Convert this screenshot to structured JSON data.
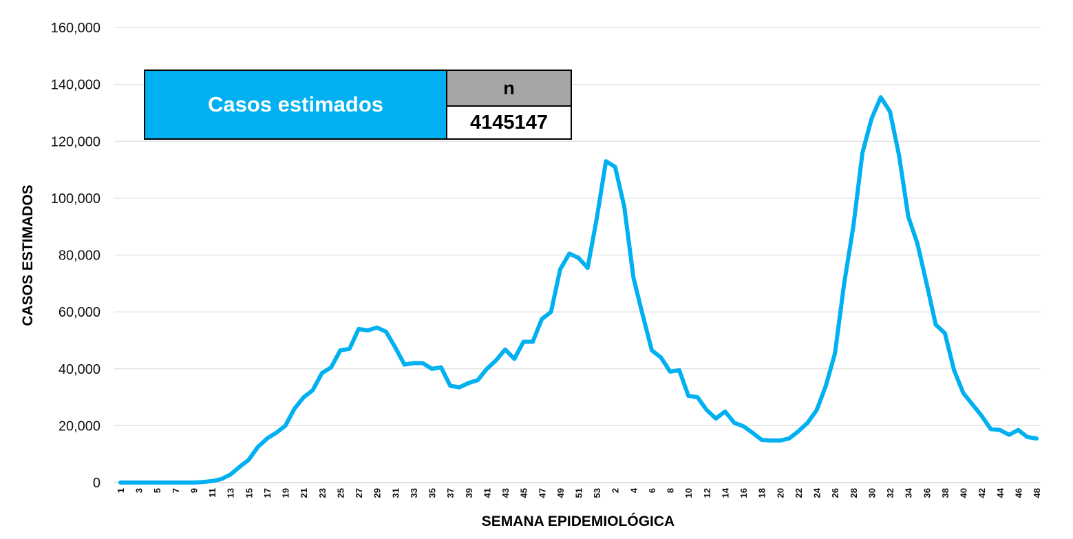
{
  "summary_table": {
    "label": "Casos estimados",
    "header": "n",
    "value": "4145147"
  },
  "colors": {
    "line": "#00b0f0",
    "label_fill": "#00b0f0",
    "header_fill": "#a6a6a6",
    "grid": "#d9d9d9"
  },
  "chart_data": {
    "type": "line",
    "title": "",
    "xlabel": "SEMANA EPIDEMIOLÓGICA",
    "ylabel": "CASOS ESTIMADOS",
    "ylim": [
      0,
      160000
    ],
    "yticks": [
      "0",
      "20,000",
      "40,000",
      "60,000",
      "80,000",
      "100,000",
      "120,000",
      "140,000",
      "160,000"
    ],
    "grid": true,
    "legend": "none",
    "categories": [
      "1",
      "2",
      "3",
      "4",
      "5",
      "6",
      "7",
      "8",
      "9",
      "10",
      "11",
      "12",
      "13",
      "14",
      "15",
      "16",
      "17",
      "18",
      "19",
      "20",
      "21",
      "22",
      "23",
      "24",
      "25",
      "26",
      "27",
      "28",
      "29",
      "30",
      "31",
      "32",
      "33",
      "34",
      "35",
      "36",
      "37",
      "38",
      "39",
      "40",
      "41",
      "42",
      "43",
      "44",
      "45",
      "46",
      "47",
      "48",
      "49",
      "50",
      "51",
      "52",
      "53",
      "1",
      "2",
      "3",
      "4",
      "5",
      "6",
      "7",
      "8",
      "9",
      "10",
      "11",
      "12",
      "13",
      "14",
      "15",
      "16",
      "17",
      "18",
      "19",
      "20",
      "21",
      "22",
      "23",
      "24",
      "25",
      "26",
      "27",
      "28",
      "29",
      "30",
      "31",
      "32",
      "33",
      "34",
      "35",
      "36",
      "37",
      "38",
      "39",
      "40",
      "41",
      "42",
      "43",
      "44",
      "45",
      "46",
      "47",
      "48"
    ],
    "x_tick_labels": [
      "1",
      "3",
      "5",
      "7",
      "9",
      "11",
      "13",
      "15",
      "17",
      "19",
      "21",
      "23",
      "25",
      "27",
      "29",
      "31",
      "33",
      "35",
      "37",
      "39",
      "41",
      "43",
      "45",
      "47",
      "49",
      "51",
      "53",
      "2",
      "4",
      "6",
      "8",
      "10",
      "12",
      "14",
      "16",
      "18",
      "20",
      "22",
      "24",
      "26",
      "28",
      "30",
      "32",
      "34",
      "36",
      "38",
      "40",
      "42",
      "44",
      "46",
      "48"
    ],
    "series": [
      {
        "values": [
          0,
          0,
          0,
          0,
          0,
          0,
          0,
          0,
          0,
          200,
          500,
          1200,
          2800,
          5500,
          8000,
          12500,
          15500,
          17500,
          20000,
          26000,
          30000,
          32500,
          38500,
          40500,
          46500,
          47000,
          54000,
          53500,
          54500,
          53000,
          47500,
          41500,
          42000,
          42000,
          40000,
          40500,
          34000,
          33500,
          35000,
          36000,
          40000,
          43000,
          46800,
          43500,
          49500,
          49500,
          57500,
          60000,
          75000,
          80500,
          79000,
          75500,
          93000,
          113000,
          111000,
          97000,
          72000,
          59000,
          46500,
          44000,
          39000,
          39500,
          30500,
          30000,
          25500,
          22500,
          25000,
          21000,
          19800,
          17500,
          15000,
          14800,
          14800,
          15500,
          18000,
          21000,
          25500,
          34000,
          45500,
          70000,
          90000,
          116000,
          128000,
          135500,
          130500,
          115000,
          93500,
          84000,
          70000,
          55500,
          52500,
          39500,
          31500,
          27500,
          23500,
          18800,
          18500,
          16800,
          18500,
          16000,
          15500
        ]
      }
    ]
  }
}
